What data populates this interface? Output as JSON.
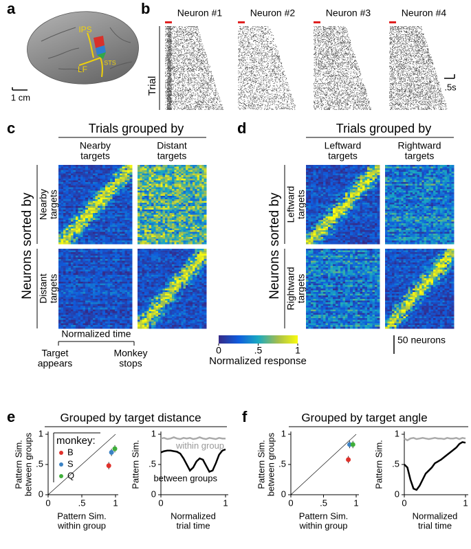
{
  "panel_labels": [
    "a",
    "b",
    "c",
    "d",
    "e",
    "f"
  ],
  "panel_a": {
    "labels": [
      "IPS",
      "LF",
      "STS"
    ],
    "scale_bar": "1 cm"
  },
  "panel_b": {
    "neurons": [
      "Neuron #1",
      "Neuron #2",
      "Neuron #3",
      "Neuron #4"
    ],
    "y_label": "Trial",
    "scale_bar": ".5s"
  },
  "panel_c": {
    "header": "Trials grouped by",
    "columns": [
      [
        "Nearby",
        "targets"
      ],
      [
        "Distant",
        "targets"
      ]
    ],
    "row_header": "Neurons sorted by",
    "rows": [
      [
        "Nearby",
        "targets"
      ],
      [
        "Distant",
        "targets"
      ]
    ],
    "time_label": "Normalized time",
    "time_start": [
      "Target",
      "appears"
    ],
    "time_end": [
      "Monkey",
      "stops"
    ]
  },
  "panel_d": {
    "header": "Trials grouped by",
    "columns": [
      [
        "Leftward",
        "targets"
      ],
      [
        "Rightward",
        "targets"
      ]
    ],
    "row_header": "Neurons sorted by",
    "rows": [
      [
        "Leftward",
        "targets"
      ],
      [
        "Rightward",
        "targets"
      ]
    ]
  },
  "colorbar": {
    "lim": [
      0,
      1
    ],
    "ticks": [
      0,
      {
        "value": 0.5,
        "label": ".5"
      },
      1
    ],
    "label": "Normalized response"
  },
  "scale_neurons": "50 neurons",
  "chart_data": [
    {
      "type": "scatter",
      "title": "Grouped by target distance",
      "xlabel": [
        "Pattern Sim.",
        "within group"
      ],
      "ylabel": [
        "Pattern Sim.",
        "between groups"
      ],
      "xlim": [
        0,
        1
      ],
      "ylim": [
        0,
        1
      ],
      "xticks": [
        0,
        {
          "value": 0.5,
          "label": ".5"
        },
        1
      ],
      "yticks": [
        0,
        {
          "value": 0.5,
          "label": ".5"
        },
        1
      ],
      "legend_title": "monkey:",
      "legend": "upper left",
      "series": [
        {
          "name": "B",
          "color": "#e0312b",
          "x": [
            0.9
          ],
          "values": [
            0.48
          ],
          "errors": [
            0.06
          ]
        },
        {
          "name": "S",
          "color": "#3b82c4",
          "x": [
            0.94
          ],
          "values": [
            0.7
          ],
          "errors": [
            0.06
          ]
        },
        {
          "name": "Q",
          "color": "#3fae3a",
          "x": [
            0.99
          ],
          "values": [
            0.76
          ],
          "errors": [
            0.06
          ]
        }
      ]
    },
    {
      "type": "line",
      "ylabel": [
        "Pattern Sim."
      ],
      "xlabel": [
        "Normalized",
        "trial time"
      ],
      "xlim": [
        0,
        1
      ],
      "ylim": [
        0,
        1
      ],
      "xticks": [
        0,
        1
      ],
      "yticks": [
        0,
        {
          "value": 0.5,
          "label": ".5"
        },
        1
      ],
      "x": [
        0,
        0.05,
        0.1,
        0.15,
        0.2,
        0.25,
        0.3,
        0.35,
        0.4,
        0.45,
        0.5,
        0.55,
        0.6,
        0.65,
        0.7,
        0.75,
        0.8,
        0.85,
        0.9,
        0.95,
        1
      ],
      "series": [
        {
          "name": "within group",
          "color": "#aaaaaa",
          "values": [
            0.93,
            0.94,
            0.92,
            0.93,
            0.95,
            0.93,
            0.92,
            0.94,
            0.93,
            0.94,
            0.92,
            0.93,
            0.95,
            0.93,
            0.92,
            0.94,
            0.93,
            0.92,
            0.94,
            0.93,
            0.93
          ]
        },
        {
          "name": "between groups",
          "color": "#000000",
          "values": [
            0.7,
            0.72,
            0.73,
            0.73,
            0.72,
            0.71,
            0.68,
            0.6,
            0.5,
            0.4,
            0.45,
            0.55,
            0.6,
            0.58,
            0.48,
            0.38,
            0.4,
            0.52,
            0.66,
            0.73,
            0.75
          ]
        }
      ]
    },
    {
      "type": "scatter",
      "title": "Grouped by target angle",
      "xlabel": [
        "Pattern Sim.",
        "within group"
      ],
      "ylabel": [
        "Pattern Sim.",
        "between groups"
      ],
      "xlim": [
        0,
        1
      ],
      "ylim": [
        0,
        1
      ],
      "xticks": [
        0,
        {
          "value": 0.5,
          "label": ".5"
        },
        1
      ],
      "yticks": [
        0,
        {
          "value": 0.5,
          "label": ".5"
        },
        1
      ],
      "series": [
        {
          "color": "#e0312b",
          "x": [
            0.88
          ],
          "values": [
            0.58
          ],
          "errors": [
            0.06
          ]
        },
        {
          "color": "#3b82c4",
          "x": [
            0.9
          ],
          "values": [
            0.83
          ],
          "errors": [
            0.06
          ]
        },
        {
          "color": "#3fae3a",
          "x": [
            0.95
          ],
          "values": [
            0.83
          ],
          "errors": [
            0.06
          ]
        }
      ]
    },
    {
      "type": "line",
      "ylabel": [
        "Pattern Sim."
      ],
      "xlabel": [
        "Normalized",
        "trial time"
      ],
      "xlim": [
        0,
        1
      ],
      "ylim": [
        0,
        1
      ],
      "xticks": [
        0,
        1
      ],
      "yticks": [
        0,
        {
          "value": 0.5,
          "label": ".5"
        },
        1
      ],
      "x": [
        0,
        0.05,
        0.1,
        0.15,
        0.2,
        0.25,
        0.3,
        0.35,
        0.4,
        0.45,
        0.5,
        0.55,
        0.6,
        0.65,
        0.7,
        0.75,
        0.8,
        0.85,
        0.9,
        0.95,
        1
      ],
      "series": [
        {
          "color": "#aaaaaa",
          "values": [
            0.93,
            0.9,
            0.93,
            0.94,
            0.92,
            0.93,
            0.94,
            0.93,
            0.92,
            0.93,
            0.94,
            0.93,
            0.93,
            0.92,
            0.94,
            0.93,
            0.93,
            0.94,
            0.92,
            0.94,
            0.93
          ]
        },
        {
          "color": "#000000",
          "values": [
            0.5,
            0.45,
            0.25,
            0.1,
            0.08,
            0.15,
            0.25,
            0.35,
            0.4,
            0.45,
            0.52,
            0.55,
            0.58,
            0.62,
            0.66,
            0.7,
            0.74,
            0.78,
            0.84,
            0.87,
            0.86
          ]
        }
      ]
    }
  ]
}
